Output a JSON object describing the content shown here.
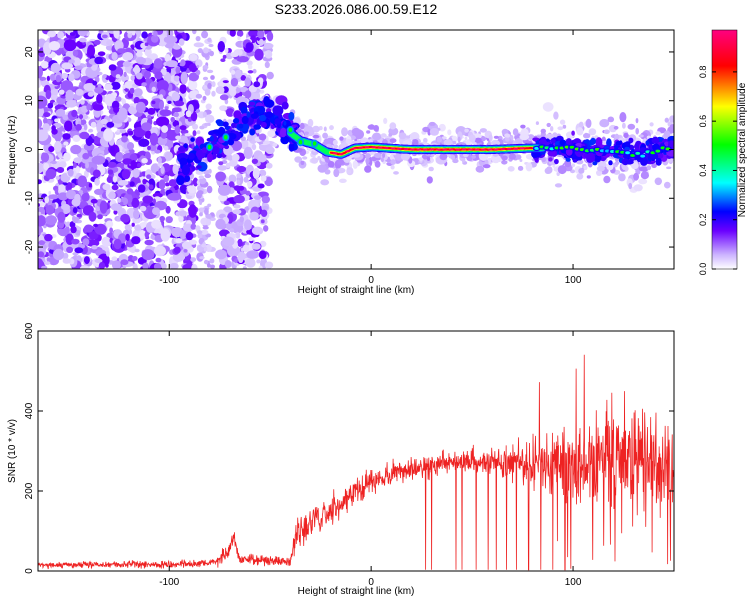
{
  "title": "S233.2026.086.00.59.E12",
  "colors": {
    "snr_line": "#ee2222",
    "axis": "#000000",
    "background": "#ffffff"
  },
  "chart_data": [
    {
      "type": "heatmap",
      "name": "spectrogram",
      "xlabel": "Height of straight line (km)",
      "ylabel": "Frequency (Hz)",
      "xlim": [
        -165,
        150
      ],
      "ylim": [
        -24.5,
        24.5
      ],
      "x_ticks": [
        -100,
        0,
        100
      ],
      "y_ticks": [
        -20,
        -10,
        0,
        10,
        20
      ],
      "colorbar": {
        "label": "Normalized spectral amplitude",
        "range": [
          0,
          0.97
        ],
        "ticks": [
          0.0,
          0.2,
          0.4,
          0.6,
          0.8
        ],
        "colormap": [
          "#ffffff",
          "#ccb3ff",
          "#6a00ff",
          "#0000ff",
          "#00ffff",
          "#00ff00",
          "#ffff00",
          "#ff0000",
          "#ff0080"
        ]
      },
      "signal_track": [
        {
          "x": -90,
          "y": -2.0
        },
        {
          "x": -80,
          "y": 0.5
        },
        {
          "x": -72,
          "y": 2.5
        },
        {
          "x": -62,
          "y": 6.0
        },
        {
          "x": -52,
          "y": 7.5
        },
        {
          "x": -42,
          "y": 4.0
        },
        {
          "x": -35,
          "y": 1.8
        },
        {
          "x": -28,
          "y": 1.0
        },
        {
          "x": -22,
          "y": -0.5
        },
        {
          "x": -15,
          "y": -1.0
        },
        {
          "x": -8,
          "y": 0.3
        },
        {
          "x": 0,
          "y": 0.5
        },
        {
          "x": 20,
          "y": 0.0
        },
        {
          "x": 40,
          "y": 0.0
        },
        {
          "x": 60,
          "y": 0.0
        },
        {
          "x": 80,
          "y": 0.3
        },
        {
          "x": 100,
          "y": 0.2
        },
        {
          "x": 120,
          "y": -0.5
        },
        {
          "x": 135,
          "y": -1.0
        },
        {
          "x": 145,
          "y": 0.3
        }
      ]
    },
    {
      "type": "line",
      "name": "snr",
      "xlabel": "Height of straight line (km)",
      "ylabel": "SNR (10 * v/v)",
      "xlim": [
        -165,
        150
      ],
      "ylim": [
        0,
        600
      ],
      "x_ticks": [
        -100,
        0,
        100
      ],
      "y_ticks": [
        0,
        200,
        400,
        600
      ],
      "envelope": [
        {
          "x": -165,
          "mean": 15,
          "noise": 8
        },
        {
          "x": -80,
          "mean": 18,
          "noise": 10
        },
        {
          "x": -72,
          "mean": 40,
          "noise": 20
        },
        {
          "x": -68,
          "mean": 85,
          "noise": 25
        },
        {
          "x": -65,
          "mean": 30,
          "noise": 15
        },
        {
          "x": -40,
          "mean": 22,
          "noise": 12
        },
        {
          "x": -37,
          "mean": 95,
          "noise": 45
        },
        {
          "x": -20,
          "mean": 150,
          "noise": 40
        },
        {
          "x": 0,
          "mean": 225,
          "noise": 35
        },
        {
          "x": 20,
          "mean": 255,
          "noise": 30
        },
        {
          "x": 40,
          "mean": 275,
          "noise": 30
        },
        {
          "x": 60,
          "mean": 275,
          "noise": 35
        },
        {
          "x": 80,
          "mean": 265,
          "noise": 60
        },
        {
          "x": 100,
          "mean": 260,
          "noise": 110
        },
        {
          "x": 120,
          "mean": 275,
          "noise": 140
        },
        {
          "x": 135,
          "mean": 270,
          "noise": 150
        },
        {
          "x": 150,
          "mean": 255,
          "noise": 140
        }
      ],
      "dropouts_x": [
        27,
        30,
        42,
        45,
        52,
        58,
        62,
        67,
        72,
        78,
        84,
        90,
        96
      ]
    }
  ]
}
